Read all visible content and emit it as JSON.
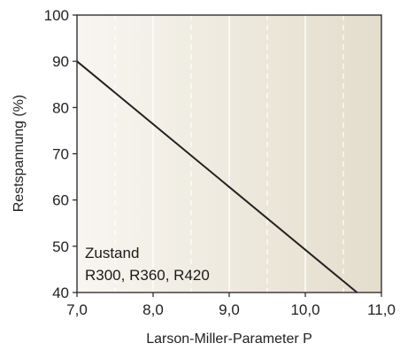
{
  "chart_data": {
    "type": "line",
    "xlabel": "Larson-Miller-Parameter P",
    "ylabel": "Restspannung (%)",
    "xlim": [
      7.0,
      11.0
    ],
    "ylim": [
      40,
      100
    ],
    "xticks": [
      7.0,
      8.0,
      9.0,
      10.0,
      11.0
    ],
    "xtick_labels": [
      "7,0",
      "8,0",
      "9,0",
      "10,0",
      "11,0"
    ],
    "yticks": [
      40,
      50,
      60,
      70,
      80,
      90,
      100
    ],
    "ytick_labels": [
      "40",
      "50",
      "60",
      "70",
      "80",
      "90",
      "100"
    ],
    "grid": true,
    "series": [
      {
        "x": [
          7.0,
          10.68
        ],
        "y": [
          90,
          40
        ]
      }
    ],
    "annotation": {
      "lines": [
        "Zustand",
        "R300, R360, R420"
      ]
    },
    "colors": {
      "line": "#222222",
      "axis": "#222222",
      "grid": "#ffffff",
      "gradient_start": "#f8f6f0",
      "gradient_end": "#e3ddcc"
    }
  }
}
